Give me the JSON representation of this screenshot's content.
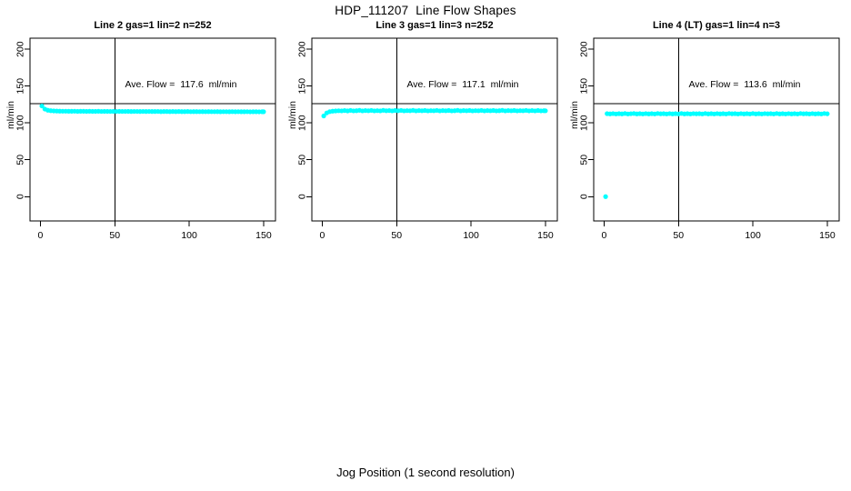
{
  "figure": {
    "title": "HDP_111207  Line Flow Shapes",
    "xlabel": "Jog Position (1 second resolution)",
    "ylabel": "ml/min",
    "colors": {
      "points": "#00FFFF",
      "axis": "#000000",
      "background": "#FFFFFF"
    }
  },
  "chart_data": [
    {
      "type": "scatter",
      "title": "Line 2 gas=1 lin=2 n=252",
      "annotation": "Ave. Flow =  117.6  ml/min",
      "ave_flow": 117.6,
      "ylabel": "ml/min",
      "xlim": [
        -7,
        158
      ],
      "ylim": [
        -33,
        215
      ],
      "xticks": [
        0,
        50,
        100,
        150
      ],
      "yticks": [
        0,
        50,
        100,
        150,
        200
      ],
      "ref_line_y": 126,
      "ref_line_x": 50,
      "grid": false,
      "points": [
        [
          1,
          123.0
        ],
        [
          3,
          118.8
        ],
        [
          5,
          117.2
        ],
        [
          7,
          116.6
        ],
        [
          9,
          116.3
        ],
        [
          11,
          116.1
        ],
        [
          13,
          116.0
        ],
        [
          15,
          115.9
        ],
        [
          17,
          115.9
        ],
        [
          19,
          115.8
        ],
        [
          21,
          115.8
        ],
        [
          23,
          115.9
        ],
        [
          25,
          115.7
        ],
        [
          27,
          115.8
        ],
        [
          29,
          115.8
        ],
        [
          31,
          115.7
        ],
        [
          33,
          115.8
        ],
        [
          35,
          115.7
        ],
        [
          37,
          115.7
        ],
        [
          39,
          115.8
        ],
        [
          41,
          115.6
        ],
        [
          43,
          115.7
        ],
        [
          45,
          115.7
        ],
        [
          47,
          115.6
        ],
        [
          49,
          115.7
        ],
        [
          51,
          115.6
        ],
        [
          53,
          115.7
        ],
        [
          55,
          115.6
        ],
        [
          57,
          115.6
        ],
        [
          59,
          115.7
        ],
        [
          61,
          115.5
        ],
        [
          63,
          115.6
        ],
        [
          65,
          115.6
        ],
        [
          67,
          115.5
        ],
        [
          69,
          115.6
        ],
        [
          71,
          115.5
        ],
        [
          73,
          115.6
        ],
        [
          75,
          115.5
        ],
        [
          77,
          115.5
        ],
        [
          79,
          115.6
        ],
        [
          81,
          115.4
        ],
        [
          83,
          115.5
        ],
        [
          85,
          115.5
        ],
        [
          87,
          115.4
        ],
        [
          89,
          115.5
        ],
        [
          91,
          115.4
        ],
        [
          93,
          115.5
        ],
        [
          95,
          115.4
        ],
        [
          97,
          115.4
        ],
        [
          99,
          115.5
        ],
        [
          101,
          115.3
        ],
        [
          103,
          115.4
        ],
        [
          105,
          115.4
        ],
        [
          107,
          115.3
        ],
        [
          109,
          115.4
        ],
        [
          111,
          115.3
        ],
        [
          113,
          115.4
        ],
        [
          115,
          115.3
        ],
        [
          117,
          115.3
        ],
        [
          119,
          115.4
        ],
        [
          121,
          115.2
        ],
        [
          123,
          115.3
        ],
        [
          125,
          115.3
        ],
        [
          127,
          115.2
        ],
        [
          129,
          115.3
        ],
        [
          131,
          115.2
        ],
        [
          133,
          115.3
        ],
        [
          135,
          115.2
        ],
        [
          137,
          115.2
        ],
        [
          139,
          115.3
        ],
        [
          141,
          115.1
        ],
        [
          143,
          115.2
        ],
        [
          145,
          115.2
        ],
        [
          147,
          115.1
        ],
        [
          149,
          115.2
        ],
        [
          150,
          115.2
        ]
      ]
    },
    {
      "type": "scatter",
      "title": "Line 3 gas=1 lin=3 n=252",
      "annotation": "Ave. Flow =  117.1  ml/min",
      "ave_flow": 117.1,
      "ylabel": "ml/min",
      "xlim": [
        -7,
        158
      ],
      "ylim": [
        -33,
        215
      ],
      "xticks": [
        0,
        50,
        100,
        150
      ],
      "yticks": [
        0,
        50,
        100,
        150,
        200
      ],
      "ref_line_y": 126,
      "ref_line_x": 50,
      "grid": false,
      "points": [
        [
          1,
          109.5
        ],
        [
          3,
          113.6
        ],
        [
          5,
          115.3
        ],
        [
          7,
          116.0
        ],
        [
          9,
          116.3
        ],
        [
          11,
          116.5
        ],
        [
          13,
          116.4
        ],
        [
          15,
          116.8
        ],
        [
          17,
          116.3
        ],
        [
          19,
          117.0
        ],
        [
          21,
          116.4
        ],
        [
          23,
          116.6
        ],
        [
          25,
          117.1
        ],
        [
          27,
          116.4
        ],
        [
          29,
          116.8
        ],
        [
          31,
          116.5
        ],
        [
          33,
          117.0
        ],
        [
          35,
          116.4
        ],
        [
          37,
          116.7
        ],
        [
          39,
          116.4
        ],
        [
          41,
          117.1
        ],
        [
          43,
          116.5
        ],
        [
          45,
          116.8
        ],
        [
          47,
          116.4
        ],
        [
          49,
          116.9
        ],
        [
          51,
          116.5
        ],
        [
          53,
          117.0
        ],
        [
          55,
          116.4
        ],
        [
          57,
          116.7
        ],
        [
          59,
          116.5
        ],
        [
          61,
          117.1
        ],
        [
          63,
          116.4
        ],
        [
          65,
          116.8
        ],
        [
          67,
          116.5
        ],
        [
          69,
          116.9
        ],
        [
          71,
          116.4
        ],
        [
          73,
          116.7
        ],
        [
          75,
          116.5
        ],
        [
          77,
          117.0
        ],
        [
          79,
          116.4
        ],
        [
          81,
          116.8
        ],
        [
          83,
          116.5
        ],
        [
          85,
          116.9
        ],
        [
          87,
          116.4
        ],
        [
          89,
          116.6
        ],
        [
          91,
          117.1
        ],
        [
          93,
          116.4
        ],
        [
          95,
          116.8
        ],
        [
          97,
          116.5
        ],
        [
          99,
          116.9
        ],
        [
          101,
          116.4
        ],
        [
          103,
          116.7
        ],
        [
          105,
          116.5
        ],
        [
          107,
          117.0
        ],
        [
          109,
          116.4
        ],
        [
          111,
          116.8
        ],
        [
          113,
          116.5
        ],
        [
          115,
          116.9
        ],
        [
          117,
          116.4
        ],
        [
          119,
          116.6
        ],
        [
          121,
          117.1
        ],
        [
          123,
          116.4
        ],
        [
          125,
          116.8
        ],
        [
          127,
          116.5
        ],
        [
          129,
          116.9
        ],
        [
          131,
          116.4
        ],
        [
          133,
          116.7
        ],
        [
          135,
          116.5
        ],
        [
          137,
          117.0
        ],
        [
          139,
          116.4
        ],
        [
          141,
          116.8
        ],
        [
          143,
          116.4
        ],
        [
          145,
          116.9
        ],
        [
          147,
          116.4
        ],
        [
          149,
          116.6
        ],
        [
          150,
          116.5
        ]
      ]
    },
    {
      "type": "scatter",
      "title": "Line 4 (LT) gas=1 lin=4 n=3",
      "annotation": "Ave. Flow =  113.6  ml/min",
      "ave_flow": 113.6,
      "ylabel": "ml/min",
      "xlim": [
        -7,
        158
      ],
      "ylim": [
        -33,
        215
      ],
      "xticks": [
        0,
        50,
        100,
        150
      ],
      "yticks": [
        0,
        50,
        100,
        150,
        200
      ],
      "ref_line_y": 126,
      "ref_line_x": 50,
      "grid": false,
      "points": [
        [
          1,
          0
        ],
        [
          2,
          112.6
        ],
        [
          4,
          112.3
        ],
        [
          6,
          112.7
        ],
        [
          8,
          112.2
        ],
        [
          10,
          112.6
        ],
        [
          12,
          112.3
        ],
        [
          14,
          112.8
        ],
        [
          16,
          112.2
        ],
        [
          18,
          112.5
        ],
        [
          20,
          112.8
        ],
        [
          22,
          112.3
        ],
        [
          24,
          112.6
        ],
        [
          26,
          112.2
        ],
        [
          28,
          112.7
        ],
        [
          30,
          112.3
        ],
        [
          32,
          112.6
        ],
        [
          34,
          112.2
        ],
        [
          36,
          112.8
        ],
        [
          38,
          112.4
        ],
        [
          40,
          112.6
        ],
        [
          42,
          112.2
        ],
        [
          44,
          112.7
        ],
        [
          46,
          112.3
        ],
        [
          48,
          112.6
        ],
        [
          50,
          112.2
        ],
        [
          52,
          112.8
        ],
        [
          54,
          112.3
        ],
        [
          56,
          112.6
        ],
        [
          58,
          112.2
        ],
        [
          60,
          112.7
        ],
        [
          62,
          112.4
        ],
        [
          64,
          112.6
        ],
        [
          66,
          112.2
        ],
        [
          68,
          112.8
        ],
        [
          70,
          112.3
        ],
        [
          72,
          112.6
        ],
        [
          74,
          112.2
        ],
        [
          76,
          112.7
        ],
        [
          78,
          112.3
        ],
        [
          80,
          112.6
        ],
        [
          82,
          112.2
        ],
        [
          84,
          112.8
        ],
        [
          86,
          112.4
        ],
        [
          88,
          112.6
        ],
        [
          90,
          112.2
        ],
        [
          92,
          112.7
        ],
        [
          94,
          112.3
        ],
        [
          96,
          112.6
        ],
        [
          98,
          112.2
        ],
        [
          100,
          112.8
        ],
        [
          102,
          112.3
        ],
        [
          104,
          112.6
        ],
        [
          106,
          112.2
        ],
        [
          108,
          112.7
        ],
        [
          110,
          112.4
        ],
        [
          112,
          112.6
        ],
        [
          114,
          112.2
        ],
        [
          116,
          112.8
        ],
        [
          118,
          112.3
        ],
        [
          120,
          112.6
        ],
        [
          122,
          112.2
        ],
        [
          124,
          112.7
        ],
        [
          126,
          112.3
        ],
        [
          128,
          112.6
        ],
        [
          130,
          112.2
        ],
        [
          132,
          112.8
        ],
        [
          134,
          112.4
        ],
        [
          136,
          112.6
        ],
        [
          138,
          112.2
        ],
        [
          140,
          112.7
        ],
        [
          142,
          112.3
        ],
        [
          144,
          112.6
        ],
        [
          146,
          112.2
        ],
        [
          148,
          112.8
        ],
        [
          150,
          112.4
        ]
      ]
    }
  ]
}
